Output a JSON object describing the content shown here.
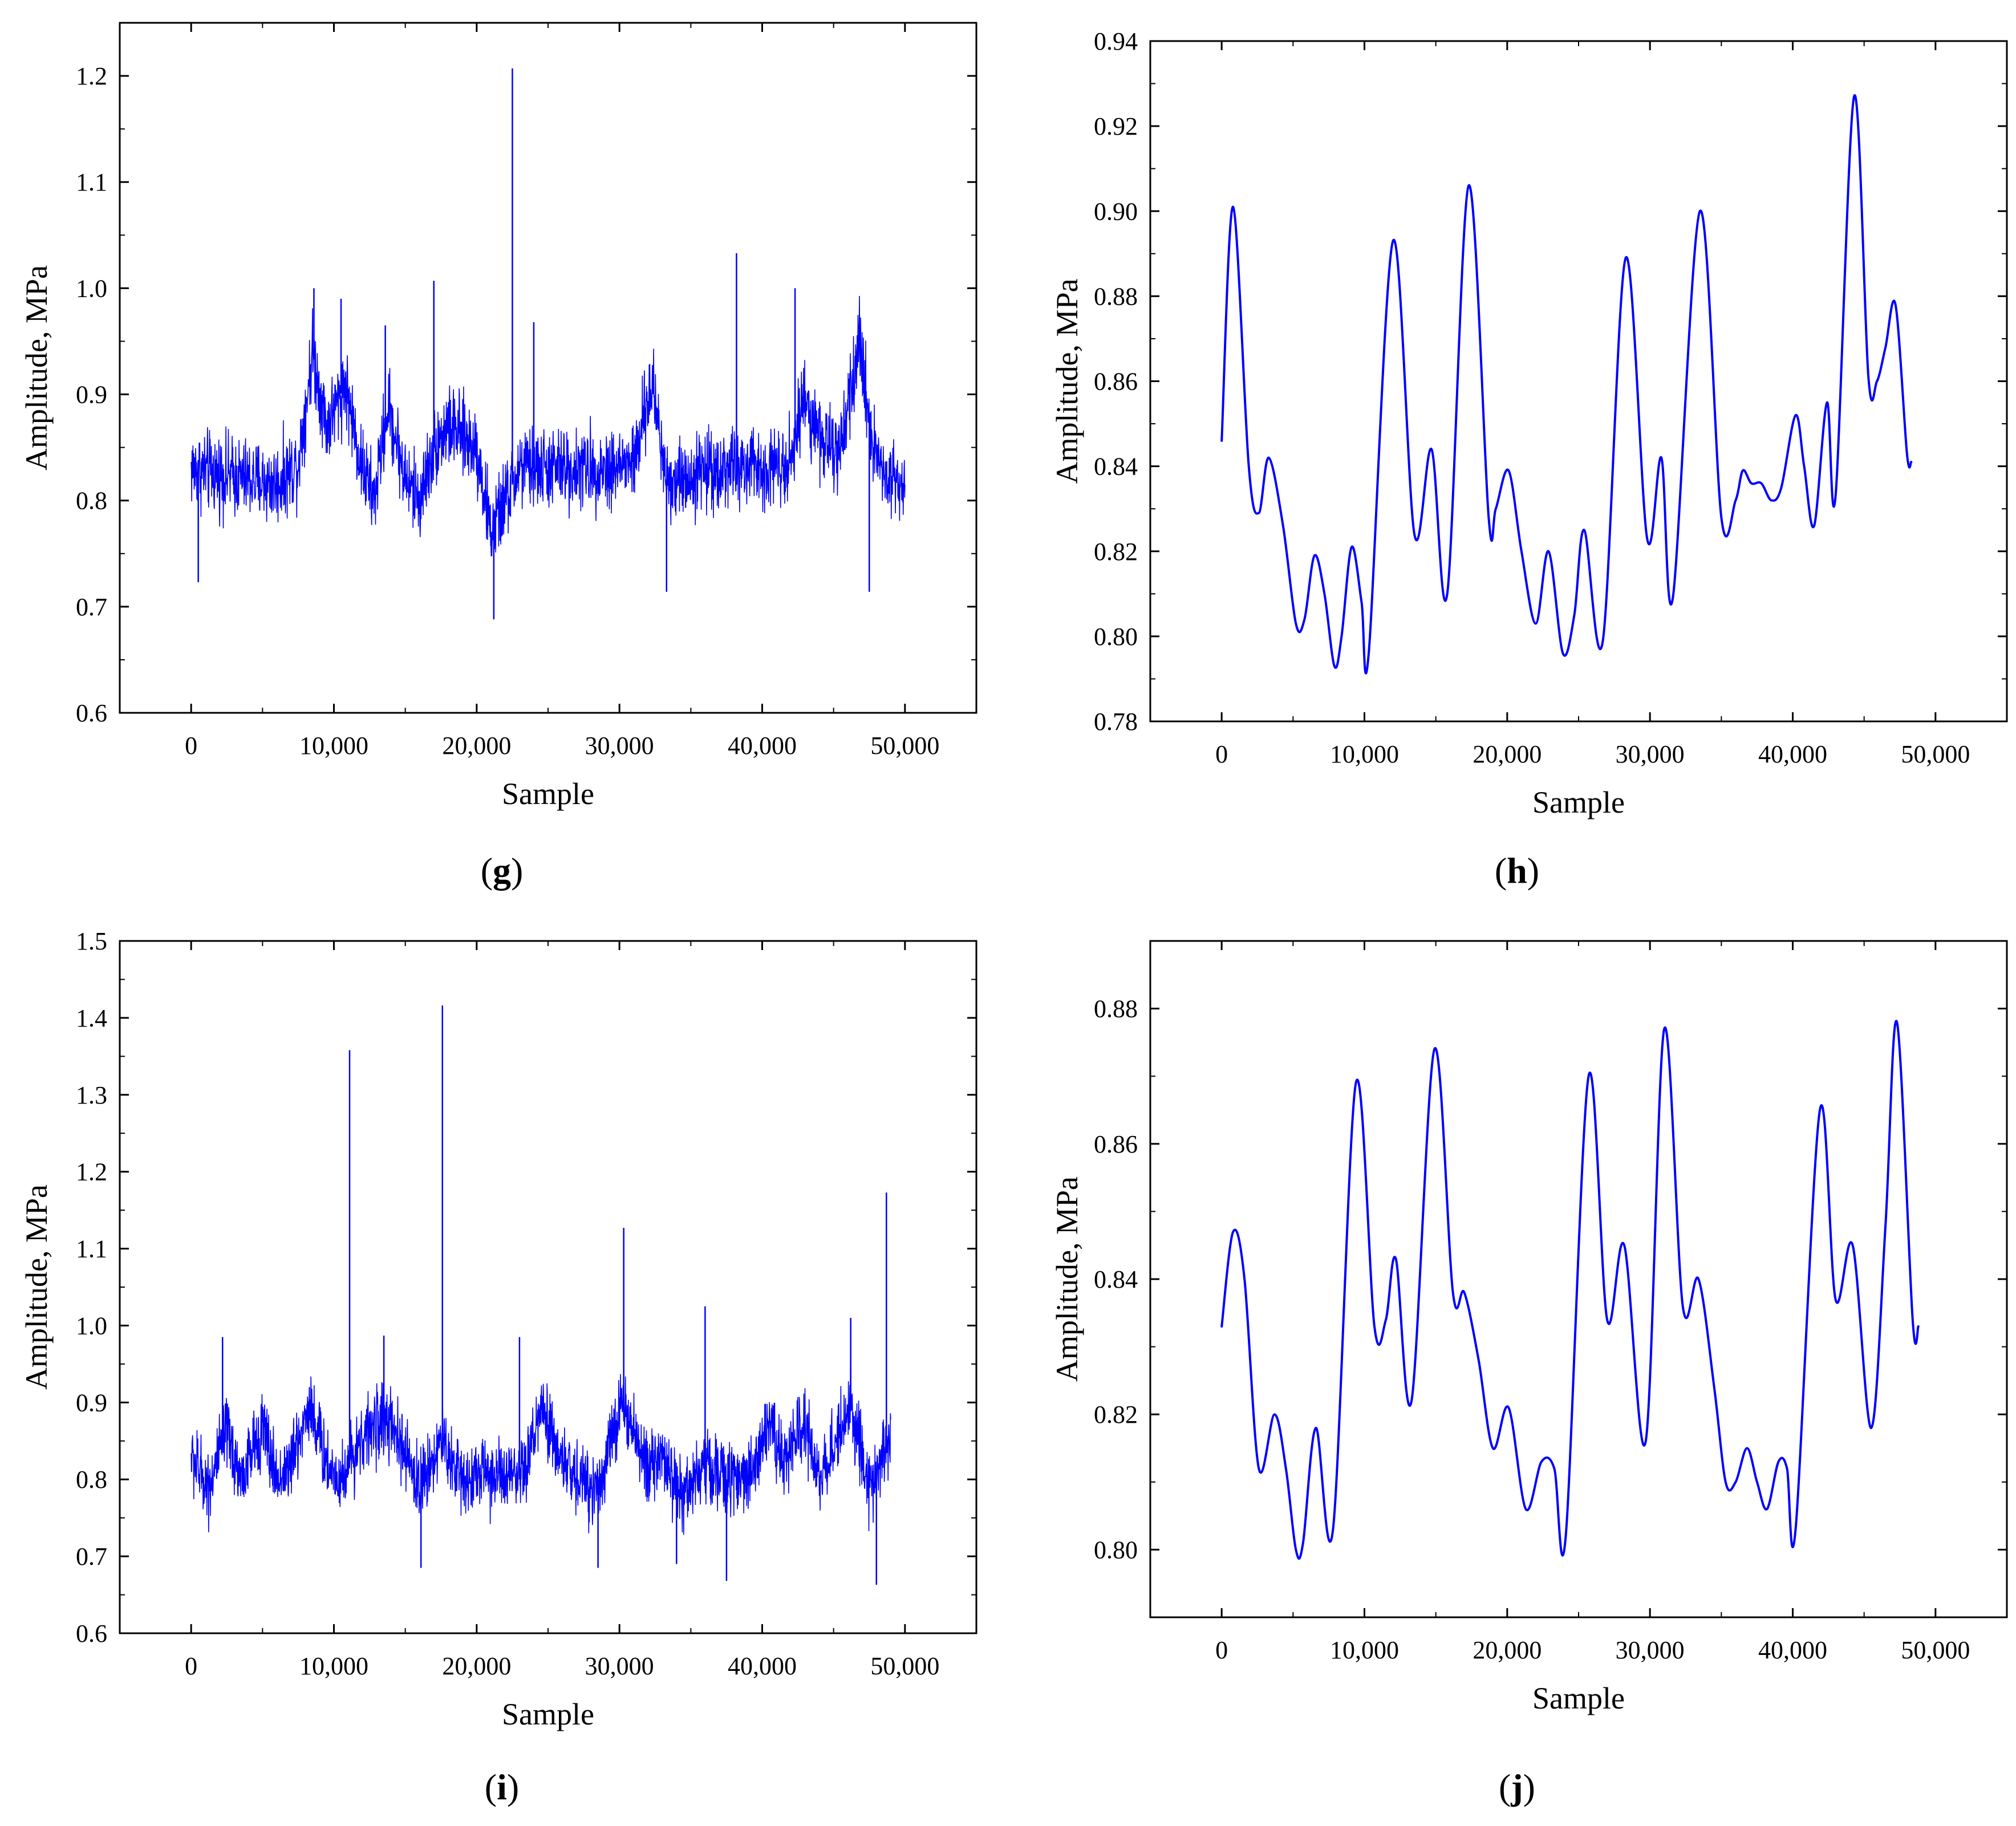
{
  "chart_data": [
    {
      "panel": "(g)",
      "type": "line",
      "style": "dense-noisy",
      "xlabel": "Sample",
      "ylabel": "Amplitude, MPa",
      "xlim": [
        -5000,
        55000
      ],
      "ylim": [
        0.6,
        1.25
      ],
      "xticks": [
        0,
        10000,
        20000,
        30000,
        40000,
        50000
      ],
      "xtick_labels": [
        "0",
        "10,000",
        "20,000",
        "30,000",
        "40,000",
        "50,000"
      ],
      "yticks": [
        0.6,
        0.7,
        0.8,
        0.9,
        1.0,
        1.1,
        1.2
      ],
      "ytick_labels": [
        "0.6",
        "0.7",
        "0.8",
        "0.9",
        "1.0",
        "1.1",
        "1.2"
      ],
      "color": "#0000ff",
      "series": [
        {
          "x": [
            0,
            2000,
            4000,
            6000,
            7500,
            8500,
            9500,
            10800,
            11800,
            12800,
            13800,
            15000,
            16000,
            17000,
            18000,
            19000,
            20000,
            21000,
            22000,
            23000,
            25000,
            27000,
            29000,
            31000,
            32300,
            33300,
            34500,
            36000,
            38000,
            40000,
            42000,
            43000,
            44000,
            45500,
            46800,
            47800,
            48800,
            50000
          ],
          "y": [
            0.83,
            0.825,
            0.82,
            0.815,
            0.835,
            0.94,
            0.87,
            0.91,
            0.84,
            0.8,
            0.89,
            0.82,
            0.8,
            0.85,
            0.87,
            0.86,
            0.85,
            0.77,
            0.8,
            0.83,
            0.83,
            0.83,
            0.83,
            0.835,
            0.91,
            0.82,
            0.82,
            0.83,
            0.83,
            0.83,
            0.84,
            0.9,
            0.86,
            0.84,
            0.95,
            0.85,
            0.82,
            0.82
          ],
          "noise": 0.04,
          "spikes": [
            [
              500,
              0.723
            ],
            [
              8600,
              1.0
            ],
            [
              10500,
              0.99
            ],
            [
              13600,
              0.965
            ],
            [
              17000,
              1.007
            ],
            [
              21200,
              0.688
            ],
            [
              22500,
              1.207
            ],
            [
              24000,
              0.968
            ],
            [
              33300,
              0.714
            ],
            [
              38200,
              1.033
            ],
            [
              42300,
              1.0
            ],
            [
              47500,
              0.714
            ]
          ]
        }
      ]
    },
    {
      "panel": "(h)",
      "type": "line",
      "style": "smooth",
      "xlabel": "Sample",
      "ylabel": "Amplitude, MPa",
      "xlim": [
        -5000,
        55000
      ],
      "ylim": [
        0.78,
        0.94
      ],
      "xticks": [
        0,
        10000,
        20000,
        30000,
        40000,
        50000
      ],
      "xtick_labels": [
        "0",
        "10,000",
        "20,000",
        "30,000",
        "40,000",
        "50,000"
      ],
      "yticks": [
        0.78,
        0.8,
        0.82,
        0.84,
        0.86,
        0.88,
        0.9,
        0.92,
        0.94
      ],
      "ytick_labels": [
        "0.78",
        "0.80",
        "0.82",
        "0.84",
        "0.86",
        "0.88",
        "0.90",
        "0.92",
        "0.94"
      ],
      "color": "#0000ff",
      "series": [
        {
          "x": [
            0,
            800,
            1900,
            2600,
            3300,
            4300,
            5200,
            5800,
            6500,
            7200,
            7900,
            8400,
            9100,
            9800,
            10300,
            12000,
            13500,
            14700,
            15800,
            17300,
            18700,
            19200,
            20100,
            21000,
            22000,
            22900,
            23900,
            24700,
            25400,
            26700,
            28300,
            29800,
            30800,
            31600,
            33500,
            35000,
            36000,
            36500,
            37100,
            37800,
            38500,
            39200,
            40200,
            40800,
            41500,
            42400,
            43000,
            44300,
            45300,
            45900,
            46500,
            47200,
            48000,
            48300
          ],
          "x_note": "",
          "y": [
            0.846,
            0.901,
            0.84,
            0.829,
            0.842,
            0.826,
            0.803,
            0.804,
            0.819,
            0.81,
            0.793,
            0.8,
            0.821,
            0.808,
            0.796,
            0.893,
            0.824,
            0.844,
            0.81,
            0.906,
            0.828,
            0.83,
            0.839,
            0.82,
            0.803,
            0.82,
            0.796,
            0.805,
            0.825,
            0.799,
            0.889,
            0.823,
            0.842,
            0.809,
            0.9,
            0.828,
            0.832,
            0.839,
            0.836,
            0.836,
            0.832,
            0.835,
            0.852,
            0.84,
            0.826,
            0.855,
            0.833,
            0.927,
            0.861,
            0.86,
            0.868,
            0.878,
            0.843,
            0.841
          ],
          "noise": 0
        }
      ]
    },
    {
      "panel": "(i)",
      "type": "line",
      "style": "dense-noisy",
      "xlabel": "Sample",
      "ylabel": "Amplitude, MPa",
      "xlim": [
        -5000,
        55000
      ],
      "ylim": [
        0.6,
        1.5
      ],
      "xticks": [
        0,
        10000,
        20000,
        30000,
        40000,
        50000
      ],
      "xtick_labels": [
        "0",
        "10,000",
        "20,000",
        "30,000",
        "40,000",
        "50,000"
      ],
      "yticks": [
        0.6,
        0.7,
        0.8,
        0.9,
        1.0,
        1.1,
        1.2,
        1.3,
        1.4,
        1.5
      ],
      "ytick_labels": [
        "0.6",
        "0.7",
        "0.8",
        "0.9",
        "1.0",
        "1.1",
        "1.2",
        "1.3",
        "1.4",
        "1.5"
      ],
      "color": "#0000ff",
      "series": [
        {
          "x": [
            0,
            1200,
            2500,
            3500,
            5000,
            6000,
            7000,
            8300,
            9500,
            10500,
            11800,
            13500,
            14800,
            16000,
            17500,
            19000,
            20500,
            22000,
            23200,
            24500,
            25800,
            27000,
            28500,
            30200,
            31500,
            33000,
            34500,
            36000,
            37500,
            39000,
            40500,
            41500,
            43000,
            44000,
            46200,
            47500,
            48500,
            49000
          ],
          "y": [
            0.83,
            0.79,
            0.86,
            0.8,
            0.87,
            0.8,
            0.82,
            0.9,
            0.82,
            0.8,
            0.85,
            0.88,
            0.84,
            0.79,
            0.85,
            0.8,
            0.81,
            0.8,
            0.8,
            0.89,
            0.83,
            0.8,
            0.79,
            0.9,
            0.83,
            0.82,
            0.78,
            0.82,
            0.8,
            0.8,
            0.88,
            0.82,
            0.87,
            0.8,
            0.9,
            0.78,
            0.84,
            0.85
          ],
          "noise": 0.05,
          "spikes": [
            [
              2200,
              0.985
            ],
            [
              11100,
              1.358
            ],
            [
              13500,
              0.987
            ],
            [
              16100,
              0.685
            ],
            [
              17600,
              1.416
            ],
            [
              23000,
              0.985
            ],
            [
              28500,
              0.685
            ],
            [
              30300,
              1.127
            ],
            [
              34000,
              0.69
            ],
            [
              36000,
              1.025
            ],
            [
              37500,
              0.668
            ],
            [
              46200,
              1.01
            ],
            [
              48000,
              0.663
            ],
            [
              48700,
              1.173
            ]
          ]
        }
      ]
    },
    {
      "panel": "(j)",
      "type": "line",
      "style": "smooth",
      "xlabel": "Sample",
      "ylabel": "Amplitude, MPa",
      "xlim": [
        -5000,
        55000
      ],
      "ylim": [
        0.79,
        0.89
      ],
      "xticks": [
        0,
        10000,
        20000,
        30000,
        40000,
        50000
      ],
      "xtick_labels": [
        "0",
        "10,000",
        "20,000",
        "30,000",
        "40,000",
        "50,000"
      ],
      "yticks": [
        0.8,
        0.82,
        0.84,
        0.86,
        0.88
      ],
      "ytick_labels": [
        "0.80",
        "0.82",
        "0.84",
        "0.86",
        "0.88"
      ],
      "color": "#0000ff",
      "series": [
        {
          "x": [
            0,
            800,
            1600,
            2600,
            3700,
            4500,
            5200,
            5700,
            6600,
            7800,
            9400,
            10700,
            11500,
            12200,
            13300,
            14900,
            16200,
            17000,
            18000,
            19000,
            20100,
            21300,
            22400,
            23300,
            24100,
            25700,
            27000,
            28200,
            29700,
            31000,
            32300,
            33400,
            34500,
            35300,
            36000,
            36800,
            37500,
            38200,
            39000,
            39600,
            40200,
            41900,
            43000,
            44200,
            45500,
            46500,
            47300,
            48400,
            48800
          ],
          "y": [
            0.833,
            0.847,
            0.84,
            0.812,
            0.82,
            0.812,
            0.8,
            0.801,
            0.818,
            0.803,
            0.869,
            0.833,
            0.834,
            0.843,
            0.822,
            0.874,
            0.838,
            0.838,
            0.828,
            0.815,
            0.821,
            0.806,
            0.813,
            0.812,
            0.802,
            0.87,
            0.834,
            0.845,
            0.816,
            0.877,
            0.836,
            0.84,
            0.824,
            0.81,
            0.81,
            0.815,
            0.81,
            0.806,
            0.813,
            0.812,
            0.803,
            0.865,
            0.837,
            0.845,
            0.818,
            0.848,
            0.878,
            0.834,
            0.833
          ],
          "noise": 0
        }
      ]
    }
  ]
}
